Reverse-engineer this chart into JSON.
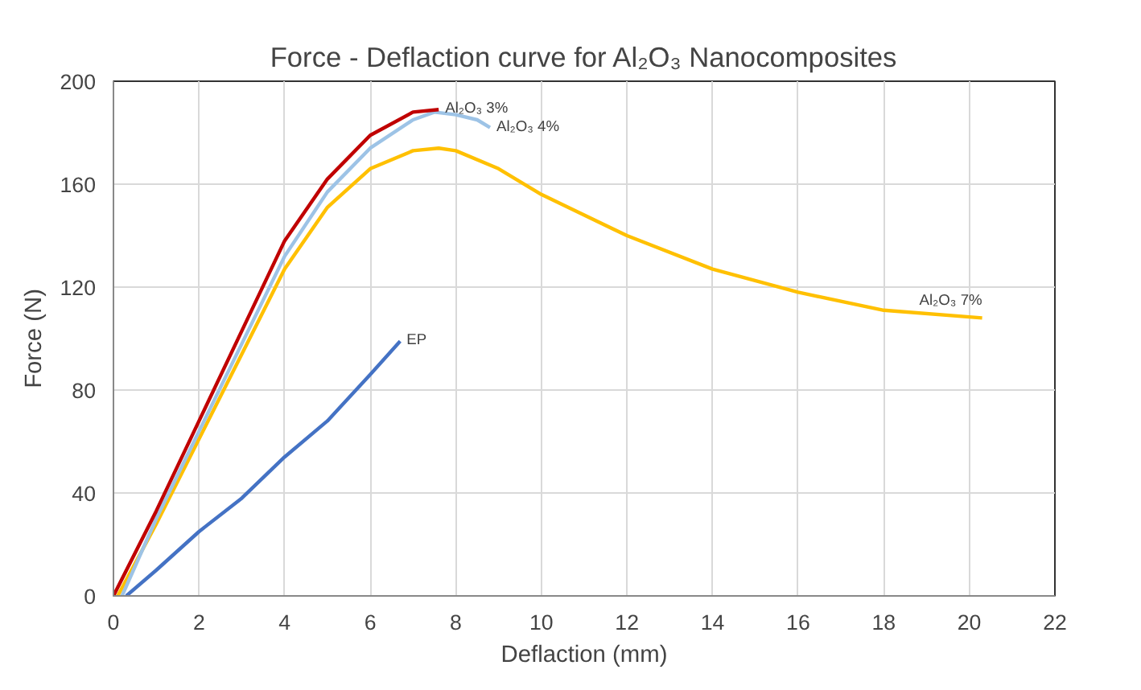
{
  "chart_data": {
    "type": "line",
    "title": "Force - Deflaction curve for Al₂O₃ Nanocomposites",
    "xlabel": "Deflaction (mm)",
    "ylabel": "Force (N)",
    "xlim": [
      0,
      22
    ],
    "xticks": [
      0,
      2,
      4,
      6,
      8,
      10,
      12,
      14,
      16,
      18,
      20,
      22
    ],
    "ylim": [
      0,
      200
    ],
    "yticks": [
      0,
      40,
      80,
      120,
      160,
      200
    ],
    "grid": true,
    "legend": false,
    "marker": "none",
    "line_style": "solid",
    "series": [
      {
        "name": "EP",
        "color": "#4472c4",
        "x": [
          0.3,
          1,
          2,
          3,
          4,
          5,
          6,
          6.7
        ],
        "values": [
          0,
          10,
          25,
          38,
          54,
          68,
          86,
          99
        ]
      },
      {
        "name": "Al₂O₃ 7%",
        "color": "#ffc000",
        "x": [
          0.1,
          1,
          2,
          3,
          4,
          5,
          6,
          7,
          7.6,
          8,
          9,
          10,
          12,
          14,
          16,
          18,
          20.3
        ],
        "values": [
          0,
          28,
          61,
          94,
          127,
          151,
          166,
          173,
          174,
          173,
          166,
          156,
          140,
          127,
          118,
          111,
          108
        ]
      },
      {
        "name": "Al₂O₃ 4%",
        "color": "#9dc3e6",
        "x": [
          0.2,
          1,
          2,
          3,
          4,
          5,
          6,
          7,
          7.5,
          8,
          8.5,
          8.8
        ],
        "values": [
          0,
          30,
          64,
          98,
          132,
          157,
          174,
          185,
          188,
          187,
          185,
          182
        ]
      },
      {
        "name": "Al₂O₃ 3%",
        "color": "#c00000",
        "x": [
          0,
          1,
          2,
          3,
          4,
          5,
          6,
          7,
          7.6
        ],
        "values": [
          0,
          33,
          68,
          103,
          138,
          162,
          179,
          188,
          189
        ]
      }
    ]
  }
}
